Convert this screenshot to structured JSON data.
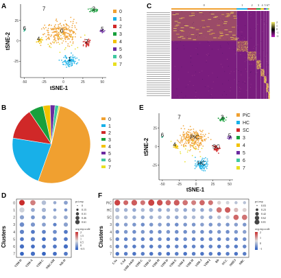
{
  "panels": {
    "A": "A",
    "B": "B",
    "C": "C",
    "D": "D",
    "E": "E",
    "F": "F"
  },
  "colors": [
    "#f0a030",
    "#18b0e8",
    "#d02828",
    "#18a03c",
    "#f2c200",
    "#6a2aa0",
    "#40c8a0",
    "#e8e020"
  ],
  "chart_data": [
    {
      "type": "scatter",
      "panel": "A",
      "xlabel": "tSNE-1",
      "ylabel": "tSNE-2",
      "xticks": [
        "-50",
        "-25",
        "0",
        "25",
        "50"
      ],
      "yticks": [
        "25",
        "0",
        "-25"
      ],
      "xlim": [
        -55,
        55
      ],
      "ylim": [
        -45,
        45
      ],
      "legend": [
        "0",
        "1",
        "2",
        "3",
        "4",
        "5",
        "6",
        "7"
      ],
      "cluster_labels": [
        {
          "text": "0",
          "x": -2,
          "y": 10
        },
        {
          "text": "1",
          "x": 8,
          "y": -25
        },
        {
          "text": "2",
          "x": 30,
          "y": -3
        },
        {
          "text": "3",
          "x": 39,
          "y": 37
        },
        {
          "text": "4",
          "x": -32,
          "y": 0
        },
        {
          "text": "5",
          "x": 50,
          "y": 12
        },
        {
          "text": "6",
          "x": -50,
          "y": 13
        },
        {
          "text": "7",
          "x": -25,
          "y": 37
        }
      ]
    },
    {
      "type": "pie",
      "panel": "B",
      "categories": [
        "0",
        "1",
        "2",
        "3",
        "4",
        "5",
        "6",
        "7"
      ],
      "values": [
        52,
        22,
        13,
        6,
        3,
        2,
        1.5,
        0.5
      ]
    },
    {
      "type": "heatmap",
      "panel": "C",
      "column_groups": [
        "0",
        "1",
        "2",
        "3",
        "4",
        "5",
        "6",
        "7"
      ],
      "column_group_widths": [
        60,
        10,
        8,
        4,
        3,
        2,
        2,
        1
      ],
      "legend_ticks": [
        "2",
        "1",
        "0",
        "-1",
        "-2"
      ]
    },
    {
      "type": "scatter",
      "panel": "D",
      "ylabel": "Clusters",
      "clusters": [
        "0",
        "1",
        "2",
        "3",
        "4",
        "5",
        "6",
        "7"
      ],
      "genes": [
        "VIM-D",
        "VIM-A",
        "VIM-C",
        "NRCAM",
        "NR-D"
      ],
      "size_legend": {
        "title": "pct.exp",
        "values": [
          "0",
          "0.15",
          "0.31",
          "0.46",
          "0.61"
        ]
      },
      "color_legend": {
        "title": "avg.exp.scale",
        "values": [
          "2",
          "1.5",
          "1",
          "0.5",
          "0",
          "-0.5"
        ]
      },
      "cells": [
        [
          2.0,
          1.4,
          0.4,
          0.2,
          0.1
        ],
        [
          0.6,
          0.2,
          0.3,
          0.1,
          0.0
        ],
        [
          0.1,
          0.0,
          0.1,
          0.3,
          0.2
        ],
        [
          -0.1,
          0.0,
          0.1,
          -0.2,
          0.1
        ],
        [
          -0.2,
          -0.3,
          -0.2,
          -0.1,
          -0.3
        ],
        [
          -0.3,
          -0.2,
          -0.4,
          -0.2,
          -0.3
        ],
        [
          -0.4,
          -0.4,
          -0.3,
          -0.3,
          -0.4
        ],
        [
          -0.5,
          -0.4,
          -0.5,
          -0.4,
          -0.3
        ]
      ],
      "pct": [
        [
          0.61,
          0.55,
          0.4,
          0.2,
          0.3
        ],
        [
          0.5,
          0.3,
          0.35,
          0.2,
          0.2
        ],
        [
          0.35,
          0.3,
          0.3,
          0.25,
          0.3
        ],
        [
          0.4,
          0.35,
          0.3,
          0.25,
          0.35
        ],
        [
          0.35,
          0.3,
          0.3,
          0.3,
          0.3
        ],
        [
          0.3,
          0.35,
          0.3,
          0.3,
          0.3
        ],
        [
          0.35,
          0.3,
          0.3,
          0.3,
          0.35
        ],
        [
          0.3,
          0.35,
          0.3,
          0.3,
          0.3
        ]
      ]
    },
    {
      "type": "scatter",
      "panel": "E",
      "xlabel": "tSNE-1",
      "ylabel": "tSNE-2",
      "xticks": [
        "-50",
        "-25",
        "0",
        "25",
        "50"
      ],
      "yticks": [
        "25",
        "0",
        "-25"
      ],
      "xlim": [
        -55,
        55
      ],
      "ylim": [
        -45,
        45
      ],
      "legend": [
        "PiC",
        "HC",
        "SC",
        "3",
        "4",
        "5",
        "6",
        "7"
      ],
      "cluster_labels": [
        {
          "text": "PiC",
          "x": -2,
          "y": 10
        },
        {
          "text": "HC",
          "x": 8,
          "y": -25
        },
        {
          "text": "SC",
          "x": 30,
          "y": -3
        },
        {
          "text": "3",
          "x": 39,
          "y": 37
        },
        {
          "text": "4",
          "x": -32,
          "y": 0
        },
        {
          "text": "5",
          "x": 50,
          "y": 12
        },
        {
          "text": "6",
          "x": -50,
          "y": 13
        },
        {
          "text": "7",
          "x": -25,
          "y": 37
        }
      ]
    },
    {
      "type": "scatter",
      "panel": "F",
      "ylabel": "Clusters",
      "clusters": [
        "PiC",
        "HC",
        "SC",
        "3",
        "4",
        "5",
        "6",
        "7"
      ],
      "genes": [
        "CAc",
        "CAd",
        "VIM-A&D",
        "VIM-C",
        "VIM-G",
        "VIM-H",
        "VIM-D",
        "VIM-E",
        "VIM-F",
        "VIM-H",
        "VIM-J",
        "VIM-I",
        "Rb",
        "NCC",
        "NHE3",
        "NBC"
      ],
      "size_legend": {
        "title": "pct.exp",
        "values": [
          "0.03",
          "0.23",
          "0.42",
          "0.62",
          "0.81"
        ]
      },
      "color_legend": {
        "title": "avg.exp.scale",
        "values": [
          "2",
          "1",
          "0",
          "-1"
        ]
      },
      "cells": [
        [
          1.8,
          1.5,
          1.6,
          1.4,
          1.8,
          1.7,
          1.5,
          1.6,
          1.4,
          1.3,
          1.5,
          1.4,
          0.6,
          0.4,
          0.2,
          0.2
        ],
        [
          0.1,
          0.0,
          -0.1,
          0.1,
          0.0,
          -0.1,
          0.0,
          0.1,
          -0.1,
          0.0,
          -0.1,
          0.0,
          1.4,
          1.6,
          0.8,
          0.6
        ],
        [
          0.2,
          0.1,
          0.0,
          -0.1,
          0.0,
          0.1,
          0.0,
          -0.1,
          0.0,
          0.1,
          0.0,
          -0.1,
          0.2,
          0.3,
          1.5,
          1.4
        ],
        [
          -0.3,
          -0.2,
          -0.3,
          -0.4,
          -0.3,
          -0.2,
          -0.3,
          -0.4,
          -0.3,
          -0.3,
          -0.2,
          -0.3,
          -0.2,
          -0.3,
          -0.2,
          -0.3
        ],
        [
          -0.4,
          -0.3,
          -0.4,
          -0.3,
          -0.4,
          -0.4,
          -0.3,
          -0.4,
          -0.4,
          -0.3,
          -0.4,
          -0.4,
          -0.3,
          -0.4,
          -0.3,
          -0.2
        ],
        [
          -0.5,
          -0.5,
          -0.4,
          -0.5,
          -0.5,
          -0.4,
          -0.5,
          -0.5,
          -0.4,
          -0.5,
          -0.5,
          -0.4,
          -0.5,
          -0.4,
          -0.5,
          -0.4
        ],
        [
          -0.6,
          -0.5,
          -0.6,
          -0.5,
          -0.6,
          -0.5,
          -0.6,
          -0.5,
          -0.6,
          -0.5,
          -0.6,
          -0.5,
          -0.6,
          -0.5,
          -0.6,
          -0.5
        ],
        [
          -0.7,
          -0.6,
          -0.7,
          -0.6,
          -0.7,
          -0.6,
          -0.7,
          -0.6,
          -0.7,
          -0.6,
          -0.7,
          -0.6,
          -0.7,
          -0.6,
          -0.7,
          -0.6
        ]
      ],
      "pct": [
        [
          0.7,
          0.5,
          0.7,
          0.5,
          0.81,
          0.7,
          0.6,
          0.7,
          0.6,
          0.5,
          0.6,
          0.5,
          0.3,
          0.25,
          0.2,
          0.2
        ],
        [
          0.4,
          0.3,
          0.3,
          0.3,
          0.35,
          0.3,
          0.3,
          0.35,
          0.3,
          0.3,
          0.3,
          0.3,
          0.6,
          0.65,
          0.4,
          0.35
        ],
        [
          0.35,
          0.3,
          0.3,
          0.3,
          0.3,
          0.3,
          0.3,
          0.3,
          0.3,
          0.3,
          0.3,
          0.3,
          0.3,
          0.3,
          0.6,
          0.6
        ],
        [
          0.3,
          0.3,
          0.3,
          0.3,
          0.3,
          0.3,
          0.3,
          0.3,
          0.3,
          0.3,
          0.3,
          0.3,
          0.3,
          0.3,
          0.3,
          0.3
        ],
        [
          0.3,
          0.3,
          0.3,
          0.3,
          0.3,
          0.3,
          0.3,
          0.3,
          0.3,
          0.3,
          0.3,
          0.3,
          0.3,
          0.3,
          0.3,
          0.3
        ],
        [
          0.3,
          0.3,
          0.3,
          0.3,
          0.3,
          0.3,
          0.3,
          0.3,
          0.3,
          0.3,
          0.3,
          0.3,
          0.3,
          0.3,
          0.3,
          0.3
        ],
        [
          0.3,
          0.3,
          0.3,
          0.3,
          0.3,
          0.3,
          0.3,
          0.3,
          0.3,
          0.3,
          0.3,
          0.3,
          0.3,
          0.3,
          0.3,
          0.3
        ],
        [
          0.3,
          0.3,
          0.3,
          0.3,
          0.3,
          0.3,
          0.3,
          0.3,
          0.3,
          0.3,
          0.3,
          0.3,
          0.3,
          0.3,
          0.3,
          0.3
        ]
      ]
    }
  ]
}
